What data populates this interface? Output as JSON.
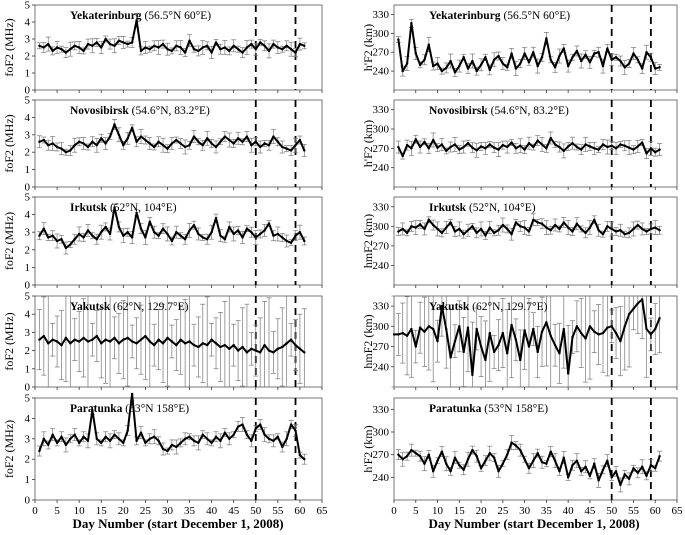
{
  "figure": {
    "left_xlabel": "Day Number (start December 1, 2008)",
    "right_xlabel": "Day Number (start December 1, 2008)",
    "x_ticks": [
      "0",
      "5",
      "10",
      "15",
      "20",
      "25",
      "30",
      "35",
      "40",
      "45",
      "50",
      "55",
      "60",
      "65"
    ]
  },
  "chart_data": [
    {
      "type": "line",
      "column": "left",
      "title": "Yekaterinburg",
      "title_coords": "(56.5°N 60°E)",
      "ylabel": "foF2 (MHz)",
      "xlim": [
        0,
        65
      ],
      "ylim": [
        0,
        5
      ],
      "y_ticks": [
        "0",
        "1",
        "2",
        "3",
        "4",
        "5"
      ],
      "vlines": [
        50,
        59
      ],
      "series": [
        {
          "x_start": 1,
          "values": [
            2.6,
            2.5,
            2.7,
            2.3,
            2.5,
            2.4,
            2.2,
            2.4,
            2.6,
            2.5,
            2.3,
            2.7,
            2.6,
            2.8,
            2.5,
            3.0,
            2.7,
            2.6,
            2.9,
            2.8,
            2.7,
            2.8,
            4.1,
            2.3,
            2.5,
            2.4,
            2.6,
            2.5,
            2.7,
            2.4,
            2.3,
            2.6,
            2.5,
            2.2,
            2.9,
            2.4,
            2.3,
            2.5,
            2.6,
            2.2,
            2.8,
            2.4,
            2.5,
            2.3,
            2.6,
            2.4,
            2.2,
            2.5,
            2.7,
            2.4,
            2.8,
            2.6,
            2.3,
            2.7,
            2.5,
            2.4,
            2.6,
            2.4,
            2.2,
            2.7,
            2.6
          ]
        }
      ]
    },
    {
      "type": "line",
      "column": "left",
      "title": "Novosibirsk",
      "title_coords": "(54.6°N, 83.2°E)",
      "ylabel": "foF2 (MHz)",
      "xlim": [
        0,
        65
      ],
      "ylim": [
        0,
        5
      ],
      "y_ticks": [
        "0",
        "1",
        "2",
        "3",
        "4",
        "5"
      ],
      "vlines": [
        50,
        59
      ],
      "series": [
        {
          "x_start": 1,
          "values": [
            2.6,
            2.7,
            2.4,
            2.5,
            2.3,
            2.2,
            2.0,
            2.1,
            2.4,
            2.6,
            2.5,
            2.3,
            2.6,
            2.4,
            2.8,
            2.5,
            2.9,
            3.6,
            3.0,
            2.4,
            2.8,
            3.4,
            2.6,
            2.9,
            2.7,
            2.5,
            2.3,
            2.6,
            2.4,
            2.2,
            2.5,
            2.7,
            2.5,
            2.3,
            2.4,
            2.9,
            2.6,
            2.4,
            2.8,
            2.5,
            2.3,
            2.6,
            2.9,
            2.7,
            2.5,
            2.8,
            2.6,
            2.9,
            2.4,
            2.6,
            2.3,
            2.5,
            2.4,
            2.9,
            2.6,
            2.3,
            2.2,
            2.1,
            2.4,
            2.7,
            2.1
          ]
        }
      ]
    },
    {
      "type": "line",
      "column": "left",
      "title": "Irkutsk",
      "title_coords": "(52°N, 104°E)",
      "ylabel": "foF2 (MHz)",
      "xlim": [
        0,
        65
      ],
      "ylim": [
        0,
        5
      ],
      "y_ticks": [
        "0",
        "1",
        "2",
        "3",
        "4",
        "5"
      ],
      "vlines": [
        50,
        59
      ],
      "series": [
        {
          "x_start": 1,
          "values": [
            2.8,
            3.2,
            2.7,
            2.8,
            2.5,
            2.6,
            2.1,
            2.3,
            2.6,
            2.9,
            2.7,
            3.1,
            2.8,
            2.6,
            3.0,
            3.3,
            2.9,
            4.4,
            3.3,
            2.8,
            3.0,
            2.7,
            4.1,
            3.2,
            2.7,
            3.6,
            3.0,
            2.8,
            3.2,
            2.9,
            2.5,
            3.0,
            2.8,
            2.6,
            3.1,
            3.4,
            2.9,
            2.7,
            2.6,
            3.0,
            3.8,
            2.8,
            2.6,
            3.3,
            2.9,
            3.1,
            2.7,
            3.2,
            3.0,
            2.7,
            2.9,
            3.1,
            3.5,
            2.8,
            2.9,
            2.7,
            2.5,
            2.4,
            2.8,
            3.0,
            2.5
          ]
        }
      ]
    },
    {
      "type": "line",
      "column": "left",
      "title": "Yakutsk",
      "title_coords": "(62°N, 129.7°E)",
      "ylabel": "foF2 (MHz)",
      "xlim": [
        0,
        65
      ],
      "ylim": [
        0,
        5
      ],
      "y_ticks": [
        "0",
        "1",
        "2",
        "3",
        "4",
        "5"
      ],
      "vlines": [
        50,
        59
      ],
      "series": [
        {
          "x_start": 1,
          "values": [
            2.6,
            2.8,
            2.4,
            2.6,
            2.5,
            2.3,
            2.7,
            2.4,
            2.6,
            2.5,
            2.7,
            2.5,
            2.6,
            2.8,
            2.4,
            2.6,
            2.5,
            2.7,
            2.4,
            2.6,
            2.7,
            2.5,
            2.4,
            2.6,
            2.8,
            2.5,
            2.3,
            2.6,
            2.4,
            2.7,
            2.5,
            2.3,
            2.6,
            2.4,
            2.5,
            2.3,
            2.2,
            2.4,
            2.3,
            2.6,
            2.4,
            2.2,
            2.3,
            2.1,
            2.3,
            2.0,
            2.2,
            1.9,
            2.1,
            2.0,
            1.9,
            2.3,
            2.0,
            1.9,
            2.1,
            2.2,
            2.4,
            2.6,
            2.3,
            2.1,
            1.9
          ]
        }
      ]
    },
    {
      "type": "line",
      "column": "left",
      "title": "Paratunka",
      "title_coords": "(53°N 158°E)",
      "ylabel": "foF2 (MHz)",
      "xlim": [
        0,
        65
      ],
      "ylim": [
        0,
        5
      ],
      "y_ticks": [
        "0",
        "1",
        "2",
        "3",
        "4",
        "5"
      ],
      "vlines": [
        50,
        59
      ],
      "series": [
        {
          "x_start": 1,
          "values": [
            2.4,
            3.0,
            2.7,
            3.2,
            2.8,
            3.1,
            2.7,
            3.0,
            3.2,
            2.8,
            3.1,
            2.9,
            4.4,
            3.0,
            2.8,
            3.1,
            2.9,
            3.2,
            3.0,
            2.8,
            3.4,
            5.2,
            2.9,
            3.3,
            2.8,
            3.0,
            3.1,
            2.9,
            2.5,
            2.4,
            2.7,
            2.6,
            2.8,
            3.0,
            3.1,
            2.9,
            2.8,
            3.2,
            3.0,
            2.8,
            3.1,
            2.9,
            3.3,
            3.0,
            3.2,
            3.6,
            3.7,
            3.2,
            2.9,
            3.5,
            3.7,
            3.2,
            3.0,
            2.9,
            3.1,
            2.6,
            3.0,
            3.7,
            3.4,
            2.2,
            2.0
          ]
        }
      ]
    },
    {
      "type": "line",
      "column": "right",
      "title": "Yekaterinburg",
      "title_coords": "(56.5°N 60°E)",
      "ylabel": "h'F2 (km)",
      "xlim": [
        0,
        65
      ],
      "ylim": [
        210,
        345
      ],
      "y_ticks": [
        "240",
        "270",
        "300",
        "330"
      ],
      "vlines": [
        50,
        59
      ],
      "series": [
        {
          "x_start": 1,
          "values": [
            290,
            240,
            252,
            316,
            268,
            250,
            258,
            282,
            248,
            252,
            240,
            245,
            256,
            238,
            248,
            262,
            244,
            256,
            240,
            250,
            262,
            242,
            258,
            264,
            252,
            246,
            268,
            244,
            252,
            268,
            254,
            270,
            248,
            262,
            292,
            258,
            246,
            264,
            276,
            248,
            262,
            272,
            256,
            266,
            254,
            268,
            270,
            248,
            276,
            258,
            262,
            256,
            246,
            252,
            268,
            258,
            244,
            270,
            262,
            244,
            246
          ]
        }
      ]
    },
    {
      "type": "line",
      "column": "right",
      "title": "Novosibirsk",
      "title_coords": "(54.6°N, 83.2°E)",
      "ylabel": "h'F2 (km)",
      "xlim": [
        0,
        65
      ],
      "ylim": [
        210,
        345
      ],
      "y_ticks": [
        "240",
        "270",
        "300",
        "330"
      ],
      "vlines": [
        50,
        59
      ],
      "series": [
        {
          "x_start": 1,
          "values": [
            272,
            258,
            275,
            270,
            284,
            272,
            280,
            270,
            283,
            271,
            276,
            266,
            272,
            276,
            268,
            272,
            278,
            271,
            267,
            273,
            270,
            276,
            271,
            268,
            275,
            272,
            279,
            270,
            274,
            268,
            278,
            272,
            282,
            276,
            270,
            286,
            276,
            272,
            266,
            273,
            278,
            272,
            268,
            276,
            273,
            270,
            268,
            276,
            272,
            274,
            270,
            276,
            274,
            271,
            268,
            273,
            279,
            262,
            270,
            264,
            268
          ]
        }
      ]
    },
    {
      "type": "line",
      "column": "right",
      "title": "Irkutsk",
      "title_coords": "(52°N, 104°E)",
      "ylabel": "hmF2 (km)",
      "xlim": [
        0,
        65
      ],
      "ylim": [
        210,
        345
      ],
      "y_ticks": [
        "240",
        "270",
        "300",
        "330"
      ],
      "vlines": [
        50,
        59
      ],
      "series": [
        {
          "x_start": 1,
          "values": [
            292,
            296,
            290,
            300,
            298,
            303,
            296,
            310,
            302,
            296,
            290,
            298,
            306,
            292,
            296,
            288,
            294,
            300,
            290,
            296,
            286,
            298,
            290,
            294,
            302,
            296,
            288,
            306,
            300,
            298,
            292,
            310,
            306,
            304,
            298,
            294,
            302,
            296,
            306,
            298,
            292,
            304,
            296,
            290,
            298,
            310,
            294,
            288,
            300,
            296,
            292,
            294,
            288,
            290,
            296,
            302,
            296,
            292,
            296,
            298,
            294
          ]
        }
      ]
    },
    {
      "type": "line",
      "column": "right",
      "title": "Yakutsk",
      "title_coords": "(62°N, 129.7°E)",
      "ylabel": "hmF2 (km)",
      "xlim": [
        0,
        65
      ],
      "ylim": [
        210,
        345
      ],
      "y_ticks": [
        "240",
        "270",
        "300",
        "330"
      ],
      "vlines": [
        50,
        59
      ],
      "series": [
        {
          "x_start": 0,
          "values": [
            288,
            288,
            290,
            286,
            296,
            270,
            298,
            292,
            300,
            296,
            278,
            330,
            296,
            254,
            278,
            300,
            262,
            298,
            228,
            296,
            270,
            250,
            290,
            262,
            272,
            290,
            260,
            302,
            280,
            250,
            294,
            270,
            296,
            262,
            292,
            306,
            286,
            272,
            260,
            296,
            230,
            284,
            300,
            290,
            282,
            300,
            292,
            288,
            290,
            298,
            300,
            290,
            278,
            300,
            318,
            326,
            334,
            340,
            296,
            288,
            296,
            312
          ]
        }
      ]
    },
    {
      "type": "line",
      "column": "right",
      "title": "Paratunka",
      "title_coords": "(53°N 158°E)",
      "ylabel": "h'F2 (km)",
      "xlim": [
        0,
        65
      ],
      "ylim": [
        210,
        345
      ],
      "y_ticks": [
        "240",
        "270",
        "300",
        "330"
      ],
      "vlines": [
        50,
        59
      ],
      "series": [
        {
          "x_start": 1,
          "values": [
            270,
            264,
            268,
            276,
            272,
            268,
            258,
            270,
            248,
            262,
            274,
            258,
            248,
            266,
            256,
            250,
            264,
            276,
            268,
            252,
            262,
            272,
            266,
            248,
            258,
            270,
            286,
            282,
            276,
            264,
            252,
            262,
            272,
            260,
            258,
            274,
            262,
            248,
            266,
            240,
            256,
            262,
            248,
            254,
            242,
            258,
            236,
            250,
            262,
            240,
            248,
            230,
            244,
            238,
            252,
            246,
            254,
            242,
            256,
            252,
            268
          ]
        }
      ]
    }
  ]
}
